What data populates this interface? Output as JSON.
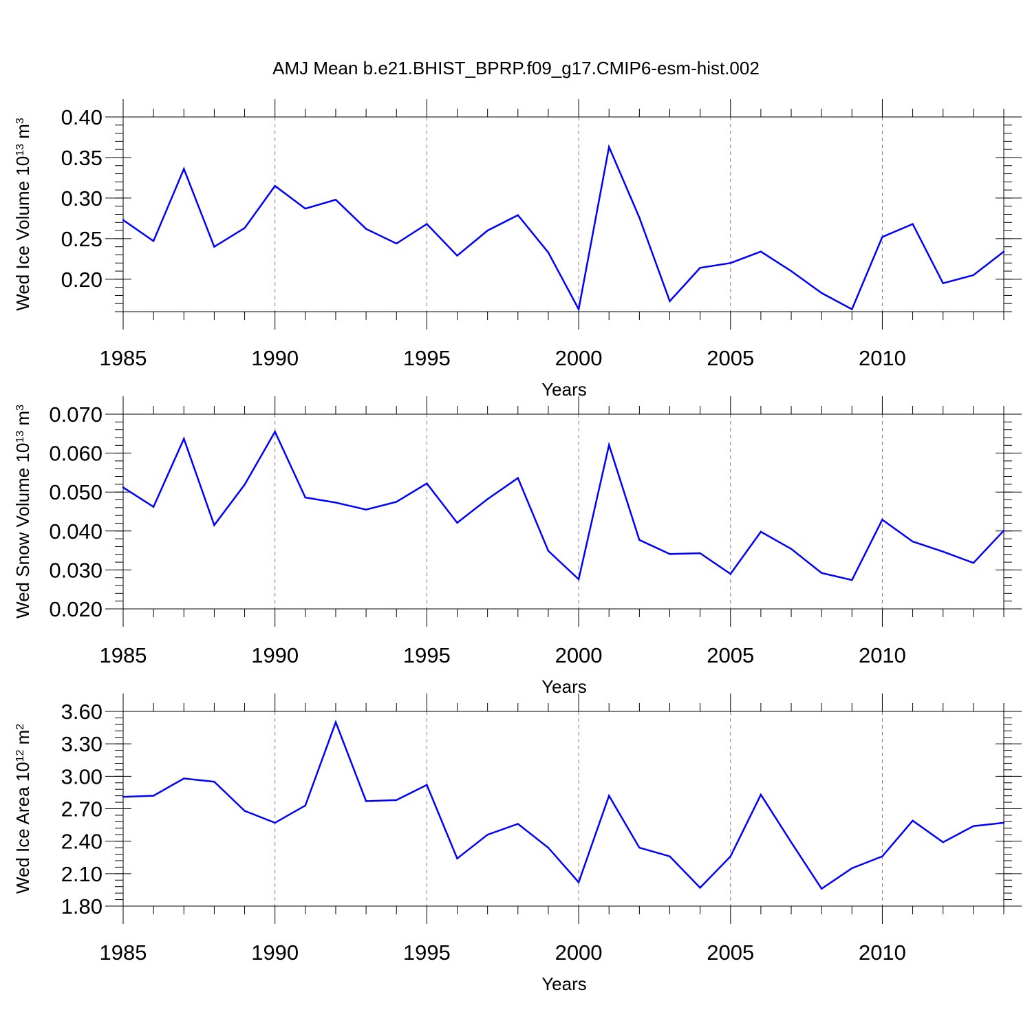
{
  "page_title": "AMJ Mean b.e21.BHIST_BPRP.f09_g17.CMIP6-esm-hist.002",
  "colors": {
    "line": "#0000ff",
    "axis": "#000000",
    "grid": "#808080"
  },
  "chart_data": [
    {
      "type": "line",
      "name": "ice-volume",
      "ylabel": {
        "text": "Wed Ice Volume 10",
        "sup": "13",
        "unit": " m",
        "unit_sup": "3"
      },
      "xlabel": "Years",
      "xlim": [
        1985,
        2014
      ],
      "ylim": [
        0.16,
        0.4
      ],
      "yticks": [
        0.2,
        0.25,
        0.3,
        0.35,
        0.4
      ],
      "ytick_labels": [
        "0.20",
        "0.25",
        "0.30",
        "0.35",
        "0.40"
      ],
      "xticks": [
        1985,
        1990,
        1995,
        2000,
        2005,
        2010
      ],
      "xtick_labels": [
        "1985",
        "1990",
        "1995",
        "2000",
        "2005",
        "2010"
      ],
      "x": [
        1985,
        1986,
        1987,
        1988,
        1989,
        1990,
        1991,
        1992,
        1993,
        1994,
        1995,
        1996,
        1997,
        1998,
        1999,
        2000,
        2001,
        2002,
        2003,
        2004,
        2005,
        2006,
        2007,
        2008,
        2009,
        2010,
        2011,
        2012,
        2013,
        2014
      ],
      "values": [
        0.273,
        0.247,
        0.336,
        0.24,
        0.263,
        0.315,
        0.287,
        0.298,
        0.262,
        0.244,
        0.268,
        0.229,
        0.26,
        0.279,
        0.233,
        0.163,
        0.363,
        0.276,
        0.173,
        0.214,
        0.22,
        0.234,
        0.21,
        0.183,
        0.163,
        0.252,
        0.268,
        0.195,
        0.205,
        0.234
      ]
    },
    {
      "type": "line",
      "name": "snow-volume",
      "ylabel": {
        "text": "Wed Snow Volume 10",
        "sup": "13",
        "unit": " m",
        "unit_sup": "3"
      },
      "xlabel": "Years",
      "xlim": [
        1985,
        2014
      ],
      "ylim": [
        0.02,
        0.07
      ],
      "yticks": [
        0.02,
        0.03,
        0.04,
        0.05,
        0.06,
        0.07
      ],
      "ytick_labels": [
        "0.020",
        "0.030",
        "0.040",
        "0.050",
        "0.060",
        "0.070"
      ],
      "xticks": [
        1985,
        1990,
        1995,
        2000,
        2005,
        2010
      ],
      "xtick_labels": [
        "1985",
        "1990",
        "1995",
        "2000",
        "2005",
        "2010"
      ],
      "x": [
        1985,
        1986,
        1987,
        1988,
        1989,
        1990,
        1991,
        1992,
        1993,
        1994,
        1995,
        1996,
        1997,
        1998,
        1999,
        2000,
        2001,
        2002,
        2003,
        2004,
        2005,
        2006,
        2007,
        2008,
        2009,
        2010,
        2011,
        2012,
        2013,
        2014
      ],
      "values": [
        0.0512,
        0.0462,
        0.0637,
        0.0415,
        0.0519,
        0.0655,
        0.0486,
        0.0473,
        0.0455,
        0.0475,
        0.0522,
        0.0421,
        0.0482,
        0.0536,
        0.0349,
        0.0276,
        0.0621,
        0.0377,
        0.0341,
        0.0343,
        0.029,
        0.0398,
        0.0354,
        0.0292,
        0.0274,
        0.0429,
        0.0373,
        0.0347,
        0.0318,
        0.0401
      ]
    },
    {
      "type": "line",
      "name": "ice-area",
      "ylabel": {
        "text": "Wed Ice Area 10",
        "sup": "12",
        "unit": " m",
        "unit_sup": "2"
      },
      "xlabel": "Years",
      "xlim": [
        1985,
        2014
      ],
      "ylim": [
        1.8,
        3.6
      ],
      "yticks": [
        1.8,
        2.1,
        2.4,
        2.7,
        3.0,
        3.3,
        3.6
      ],
      "ytick_labels": [
        "1.80",
        "2.10",
        "2.40",
        "2.70",
        "3.00",
        "3.30",
        "3.60"
      ],
      "xticks": [
        1985,
        1990,
        1995,
        2000,
        2005,
        2010
      ],
      "xtick_labels": [
        "1985",
        "1990",
        "1995",
        "2000",
        "2005",
        "2010"
      ],
      "x": [
        1985,
        1986,
        1987,
        1988,
        1989,
        1990,
        1991,
        1992,
        1993,
        1994,
        1995,
        1996,
        1997,
        1998,
        1999,
        2000,
        2001,
        2002,
        2003,
        2004,
        2005,
        2006,
        2007,
        2008,
        2009,
        2010,
        2011,
        2012,
        2013,
        2014
      ],
      "values": [
        2.81,
        2.82,
        2.98,
        2.95,
        2.68,
        2.57,
        2.73,
        3.5,
        2.77,
        2.78,
        2.92,
        2.24,
        2.46,
        2.56,
        2.34,
        2.02,
        2.82,
        2.34,
        2.26,
        1.97,
        2.26,
        2.83,
        2.39,
        1.96,
        2.15,
        2.26,
        2.59,
        2.39,
        2.54,
        2.57
      ]
    }
  ]
}
